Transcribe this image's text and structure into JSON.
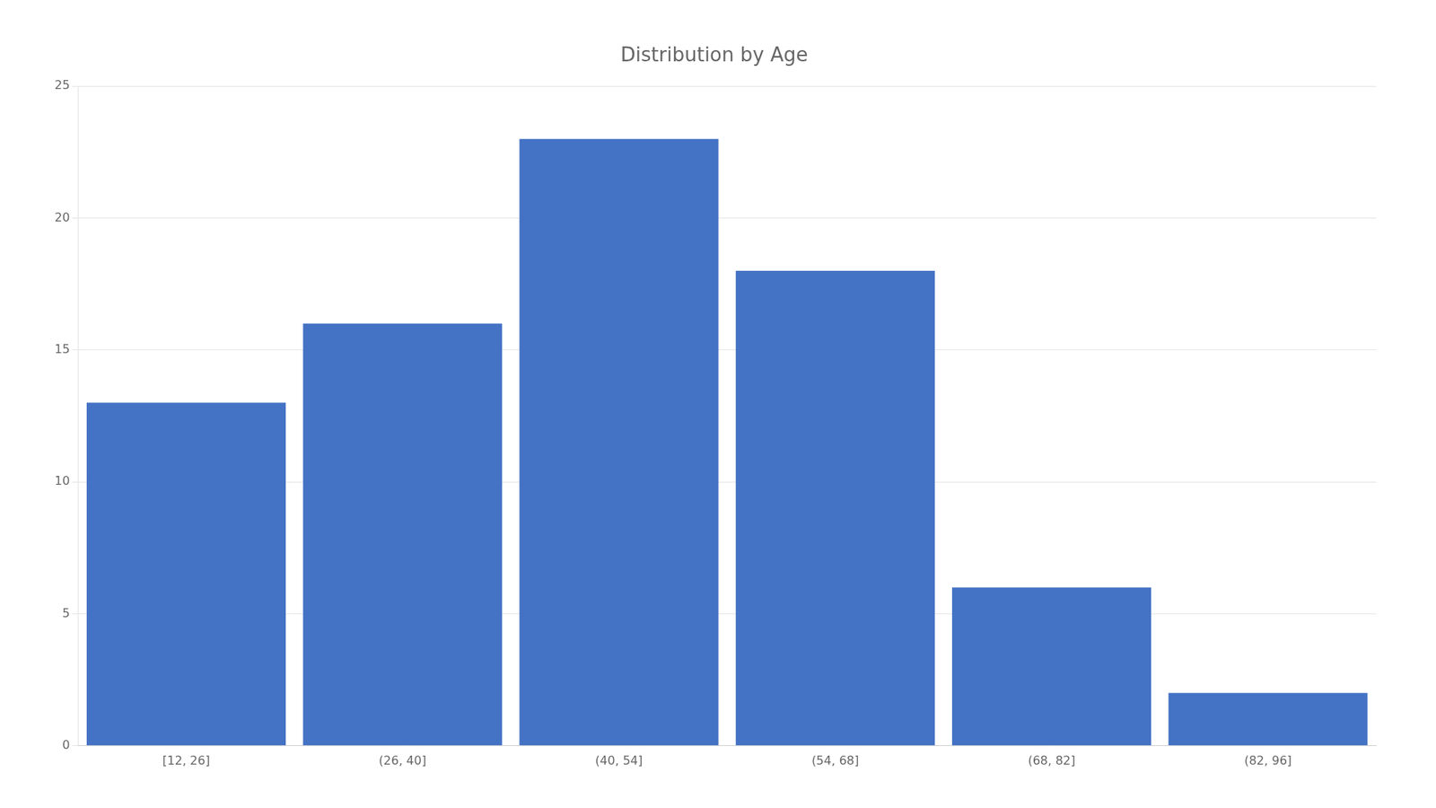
{
  "chart_data": {
    "type": "bar",
    "title": "Distribution by Age",
    "categories": [
      "[12, 26]",
      "(26, 40]",
      "(40, 54]",
      "(54, 68]",
      "(68, 82]",
      "(82, 96]"
    ],
    "values": [
      13,
      16,
      23,
      18,
      6,
      2
    ],
    "color": "#4472C4",
    "ylim": [
      0,
      25
    ],
    "yticks": [
      0,
      5,
      10,
      15,
      20,
      25
    ],
    "grid": true
  }
}
